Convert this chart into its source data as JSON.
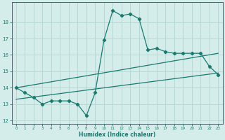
{
  "xlabel": "Humidex (Indice chaleur)",
  "xlim": [
    -0.5,
    23.5
  ],
  "ylim": [
    11.8,
    19.2
  ],
  "yticks": [
    12,
    13,
    14,
    15,
    16,
    17,
    18
  ],
  "xticks": [
    0,
    1,
    2,
    3,
    4,
    5,
    6,
    7,
    8,
    9,
    10,
    11,
    12,
    13,
    14,
    15,
    16,
    17,
    18,
    19,
    20,
    21,
    22,
    23
  ],
  "bg_color": "#d4ecea",
  "grid_color": "#b8d8d6",
  "line_color": "#1a7a6e",
  "line1_x": [
    0,
    1,
    2,
    3,
    4,
    5,
    6,
    7,
    8,
    9,
    10,
    11,
    12,
    13,
    14,
    15,
    16,
    17,
    18,
    19,
    20,
    21,
    22,
    23
  ],
  "line1_y": [
    14.0,
    13.7,
    13.4,
    13.0,
    13.2,
    13.2,
    13.2,
    13.0,
    12.3,
    13.7,
    16.9,
    18.7,
    18.4,
    18.5,
    18.2,
    16.3,
    16.4,
    16.2,
    16.1,
    16.1,
    16.1,
    16.1,
    15.3,
    14.8
  ],
  "line2_x": [
    0,
    23
  ],
  "line2_y": [
    14.0,
    16.1
  ],
  "line3_x": [
    0,
    23
  ],
  "line3_y": [
    13.3,
    14.9
  ]
}
